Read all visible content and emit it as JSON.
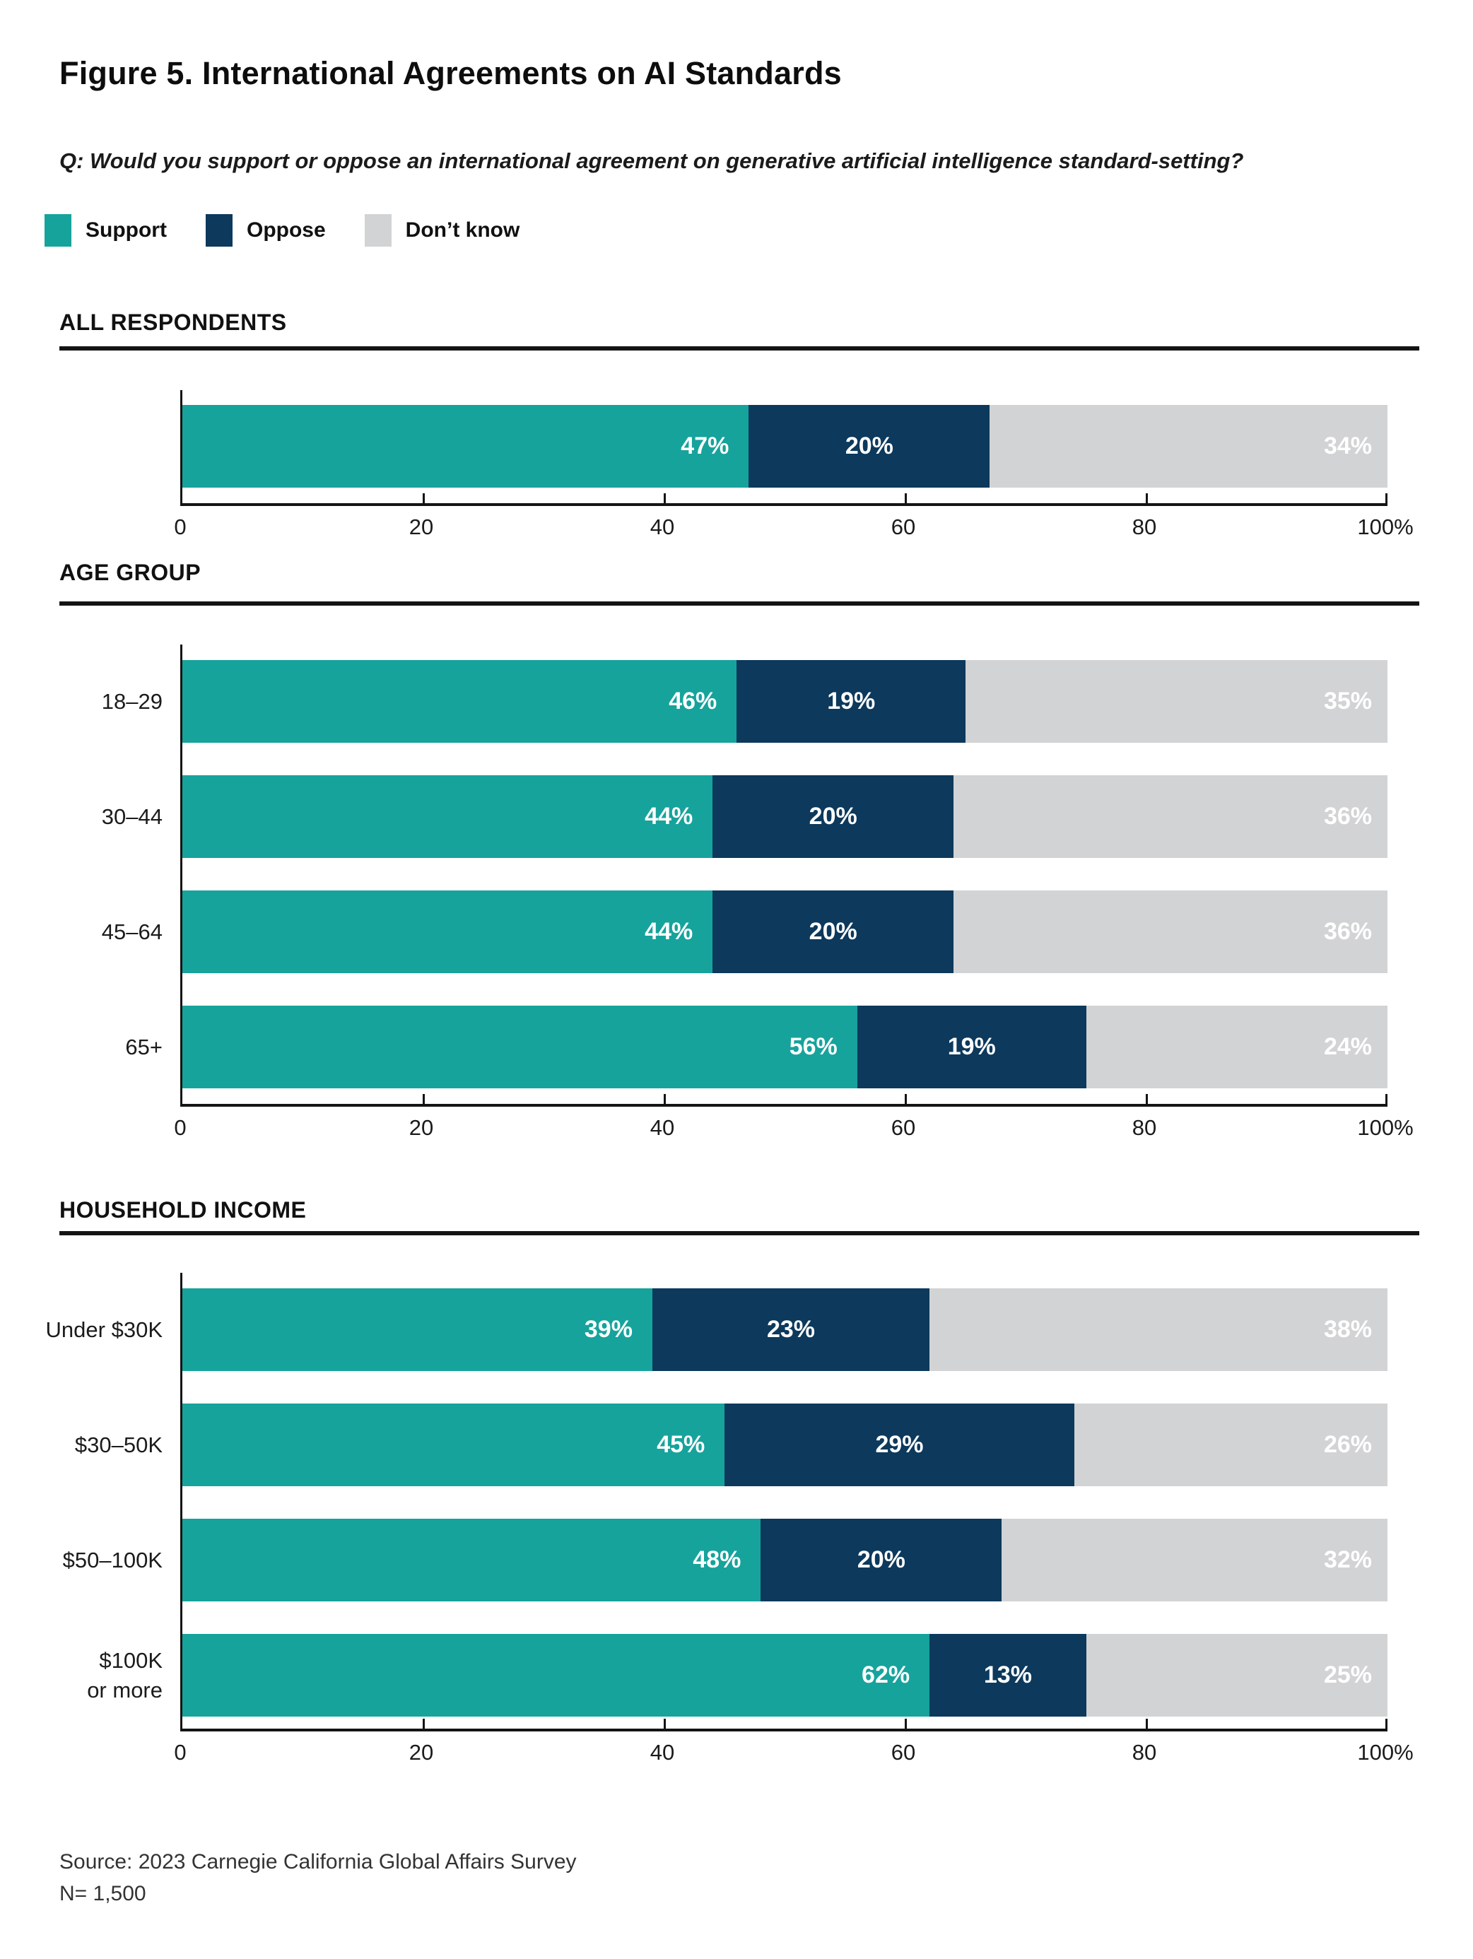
{
  "figure": {
    "title": "Figure 5. International Agreements on AI Standards",
    "question": "Q: Would you support or oppose an international agreement on generative artificial intelligence standard-setting?",
    "source": "Source: 2023 Carnegie California Global Affairs Survey",
    "n": "N= 1,500"
  },
  "colors": {
    "support": "#16A39C",
    "oppose": "#0C395C",
    "dont_know": "#D2D3D4",
    "axis": "#141414"
  },
  "legend": [
    {
      "key": "support",
      "label": "Support"
    },
    {
      "key": "oppose",
      "label": "Oppose"
    },
    {
      "key": "dont_know",
      "label": "Don’t know"
    }
  ],
  "axis": {
    "xlim": [
      0,
      100
    ],
    "ticks": [
      {
        "value": 0,
        "label": "0"
      },
      {
        "value": 20,
        "label": "20"
      },
      {
        "value": 40,
        "label": "40"
      },
      {
        "value": 60,
        "label": "60"
      },
      {
        "value": 80,
        "label": "80"
      },
      {
        "value": 100,
        "label": "100%"
      }
    ]
  },
  "chart_data": [
    {
      "type": "bar",
      "orientation": "horizontal",
      "stacked": true,
      "title": "ALL RESPONDENTS",
      "categories": [
        ""
      ],
      "xlim": [
        0,
        100
      ],
      "series": [
        {
          "name": "Support",
          "key": "support",
          "values": [
            47
          ]
        },
        {
          "name": "Oppose",
          "key": "oppose",
          "values": [
            20
          ]
        },
        {
          "name": "Don’t know",
          "key": "dont_know",
          "values": [
            34
          ]
        }
      ]
    },
    {
      "type": "bar",
      "orientation": "horizontal",
      "stacked": true,
      "title": "AGE GROUP",
      "categories": [
        "18–29",
        "30–44",
        "45–64",
        "65+"
      ],
      "xlim": [
        0,
        100
      ],
      "series": [
        {
          "name": "Support",
          "key": "support",
          "values": [
            46,
            44,
            44,
            56
          ]
        },
        {
          "name": "Oppose",
          "key": "oppose",
          "values": [
            19,
            20,
            20,
            19
          ]
        },
        {
          "name": "Don’t know",
          "key": "dont_know",
          "values": [
            35,
            36,
            36,
            24
          ]
        }
      ]
    },
    {
      "type": "bar",
      "orientation": "horizontal",
      "stacked": true,
      "title": "HOUSEHOLD INCOME",
      "categories": [
        "Under $30K",
        "$30–50K",
        "$50–100K",
        "$100K\nor more"
      ],
      "xlim": [
        0,
        100
      ],
      "series": [
        {
          "name": "Support",
          "key": "support",
          "values": [
            39,
            45,
            48,
            62
          ]
        },
        {
          "name": "Oppose",
          "key": "oppose",
          "values": [
            23,
            29,
            20,
            13
          ]
        },
        {
          "name": "Don’t know",
          "key": "dont_know",
          "values": [
            38,
            26,
            32,
            25
          ]
        }
      ]
    }
  ]
}
